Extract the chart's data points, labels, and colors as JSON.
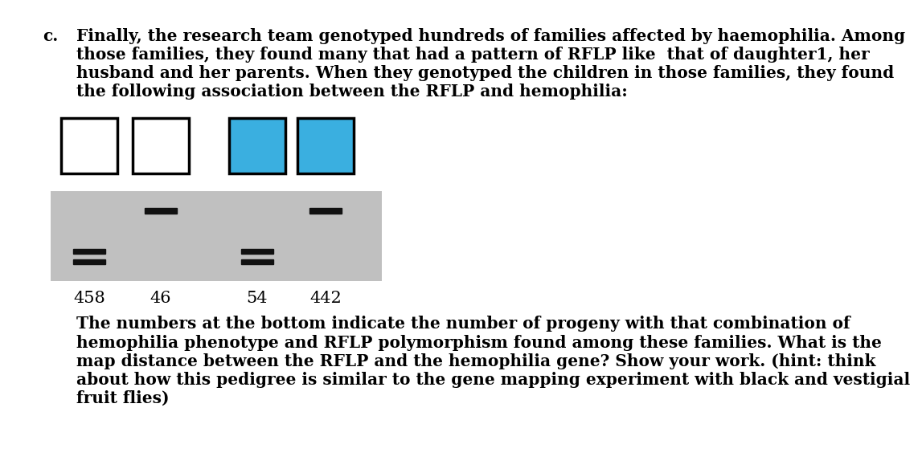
{
  "title_label": "c.",
  "header_lines": [
    "Finally, the research team genotyped hundreds of families affected by haemophilia. Among",
    "those families, they found many that had a pattern of RFLP like  that of daughter1, her",
    "husband and her parents. When they genotyped the children in those families, they found",
    "the following association between the RFLP and hemophilia:"
  ],
  "footer_lines": [
    "The numbers at the bottom indicate the number of progeny with that combination of",
    "hemophilia phenotype and RFLP polymorphism found among these families. What is the",
    "map distance between the RFLP and the hemophilia gene? Show your work. (hint: think",
    "about how this pedigree is similar to the gene mapping experiment with black and vestigial",
    "fruit flies)"
  ],
  "square_colors": [
    "white",
    "white",
    "#3aafe0",
    "#3aafe0"
  ],
  "square_border_color": "#000000",
  "counts": [
    "458",
    "46",
    "54",
    "442"
  ],
  "gel_bg_color": "#c0c0c0",
  "band_color": "#111111",
  "bg_color": "#ffffff",
  "text_color": "#000000",
  "font_size_header": 14.5,
  "font_size_count": 15,
  "font_size_footer": 14.5,
  "font_size_label": 14.5
}
